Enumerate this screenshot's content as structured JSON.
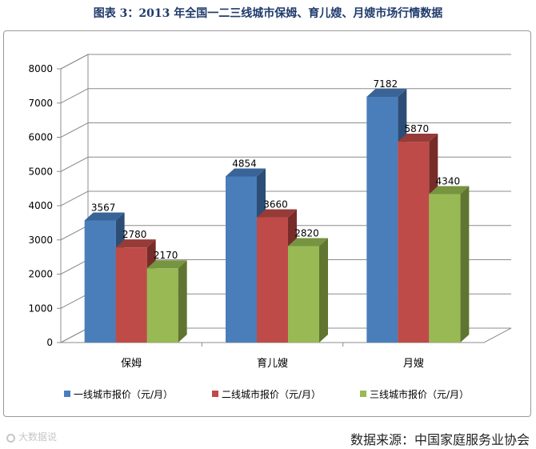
{
  "title": "图表 3：2013 年全国一二三线城市保姆、育儿嫂、月嫂市场行情数据",
  "source": "数据来源：中国家庭服务业协会",
  "watermark": "大数据说",
  "colors": {
    "series": [
      "#4a7ebb",
      "#be4b48",
      "#98b954"
    ],
    "series_side": [
      "#2c4d75",
      "#772c2a",
      "#5f7530"
    ],
    "series_top": [
      "#3a6497",
      "#963b38",
      "#779440"
    ],
    "grid": "#8c8c8c",
    "wall": "#ffffff"
  },
  "chart_data": {
    "type": "bar",
    "style": "3d-clustered-column",
    "categories": [
      "保姆",
      "育儿嫂",
      "月嫂"
    ],
    "series": [
      {
        "name": "一线城市报价（元/月）",
        "values": [
          3567,
          4854,
          7182
        ]
      },
      {
        "name": "二线城市报价（元/月）",
        "values": [
          2780,
          3660,
          5870
        ]
      },
      {
        "name": "三线城市报价（元/月）",
        "values": [
          2170,
          2820,
          4340
        ]
      }
    ],
    "data_labels": [
      [
        "3567",
        "4854",
        "7182"
      ],
      [
        "2780",
        "3660",
        "5870"
      ],
      [
        "2170",
        "2820",
        "4340"
      ]
    ],
    "yticks": [
      "0",
      "1000",
      "2000",
      "3000",
      "4000",
      "5000",
      "6000",
      "7000",
      "8000"
    ],
    "ylim": [
      0,
      8000
    ],
    "grid": true,
    "legend_position": "bottom"
  }
}
